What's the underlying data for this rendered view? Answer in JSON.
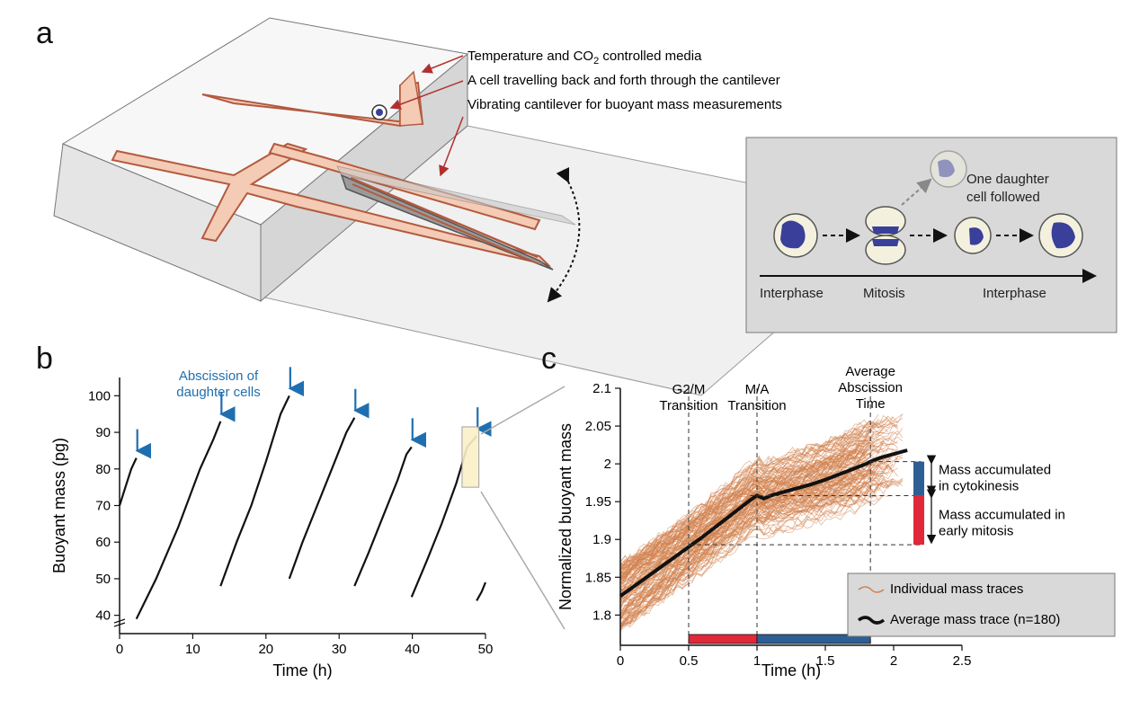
{
  "panels": {
    "a": "a",
    "b": "b",
    "c": "c"
  },
  "panel_a": {
    "labels": [
      "Temperature and CO",
      "A cell travelling back and forth through the cantilever",
      "Vibrating cantilever for buoyant mass measurements"
    ],
    "co2_subscript": "2",
    "co2_suffix": " controlled media",
    "inset": {
      "caption_line1": "One daughter",
      "caption_line2": "cell followed",
      "phases": [
        "Interphase",
        "Mitosis",
        "Interphase"
      ]
    },
    "colors": {
      "channel": "#f4cbb5",
      "channel_edge": "#b35a3f",
      "nucleus": "#3a3f9a",
      "inset_bg": "#d9d9d9",
      "arrow": "#b03030"
    }
  },
  "chart_data": [
    {
      "type": "line",
      "panel": "b",
      "xlabel": "Time (h)",
      "ylabel": "Buoyant mass (pg)",
      "xlim": [
        0,
        50
      ],
      "ylim": [
        35,
        105
      ],
      "xticks": [
        0,
        10,
        20,
        30,
        40,
        50
      ],
      "yticks": [
        40,
        50,
        60,
        70,
        80,
        90,
        100
      ],
      "annotation": {
        "line1": "Abscission of",
        "line2": "daughter cells",
        "arrow_times_h": [
          2.3,
          13.8,
          23.2,
          32.1,
          39.9,
          48.8
        ]
      },
      "series": [
        {
          "x": [
            0,
            0.8,
            1.6,
            2.3
          ],
          "y": [
            70,
            75,
            80,
            83
          ]
        },
        {
          "x": [
            2.3,
            5,
            8,
            11,
            12.8,
            13.8
          ],
          "y": [
            39,
            50,
            64,
            80,
            88,
            93
          ]
        },
        {
          "x": [
            13.8,
            16,
            18,
            20,
            22,
            23.2
          ],
          "y": [
            48,
            60,
            70,
            82,
            95,
            100
          ]
        },
        {
          "x": [
            23.2,
            25,
            27,
            29,
            31,
            32.1
          ],
          "y": [
            50,
            60,
            70,
            80,
            90,
            94
          ]
        },
        {
          "x": [
            32.1,
            34,
            36,
            38,
            39.2,
            39.9
          ],
          "y": [
            48,
            57,
            67,
            77,
            84,
            86
          ]
        },
        {
          "x": [
            39.9,
            42,
            44,
            46,
            47.5,
            48.8
          ],
          "y": [
            45,
            55,
            65,
            76,
            86,
            89
          ]
        },
        {
          "x": [
            48.8,
            49.5,
            50
          ],
          "y": [
            44,
            46.5,
            49
          ]
        }
      ]
    },
    {
      "type": "line",
      "panel": "c",
      "xlabel": "Time (h)",
      "ylabel": "Normalized buoyant mass",
      "xlim": [
        0,
        2.5
      ],
      "ylim": [
        1.76,
        2.1
      ],
      "xticks": [
        "0",
        "0.5",
        "1",
        "1.5",
        "2",
        "2.5"
      ],
      "yticks": [
        "1.8",
        "1.85",
        "1.9",
        "1.95",
        "2",
        "2.05",
        "2.1"
      ],
      "vlines": [
        {
          "x": 0.5,
          "label1": "G2/M",
          "label2": "Transition"
        },
        {
          "x": 1.0,
          "label1": "M/A",
          "label2": "Transition"
        },
        {
          "x": 1.83,
          "label1": "Average",
          "label2": "Abscission",
          "label3": "Time"
        }
      ],
      "brackets": {
        "blue_label1": "Mass accumulated",
        "blue_label2": "in cytokinesis",
        "red_label1": "Mass accumulated in",
        "red_label2": "early mitosis",
        "red_range": [
          1.893,
          1.958
        ],
        "blue_range": [
          1.958,
          2.003
        ]
      },
      "phase_bar": {
        "red": [
          0.5,
          1.0
        ],
        "blue": [
          1.0,
          1.83
        ],
        "red_color": "#e0283a",
        "blue_color": "#2d5f94"
      },
      "legend": {
        "individual": "Individual mass traces",
        "average": "Average mass trace (n=180)",
        "position": "bottom-right"
      },
      "average": {
        "x": [
          0,
          0.1,
          0.2,
          0.3,
          0.4,
          0.5,
          0.6,
          0.7,
          0.8,
          0.9,
          0.95,
          1.0,
          1.05,
          1.1,
          1.2,
          1.3,
          1.4,
          1.5,
          1.6,
          1.7,
          1.8,
          1.83,
          1.9,
          2.0,
          2.1
        ],
        "y": [
          1.825,
          1.838,
          1.851,
          1.864,
          1.877,
          1.89,
          1.903,
          1.917,
          1.931,
          1.945,
          1.952,
          1.958,
          1.954,
          1.958,
          1.963,
          1.968,
          1.973,
          1.979,
          1.986,
          1.993,
          2.0,
          2.003,
          2.008,
          2.013,
          2.018
        ]
      },
      "individual_color": "#d2804b",
      "average_color": "#111111"
    }
  ]
}
